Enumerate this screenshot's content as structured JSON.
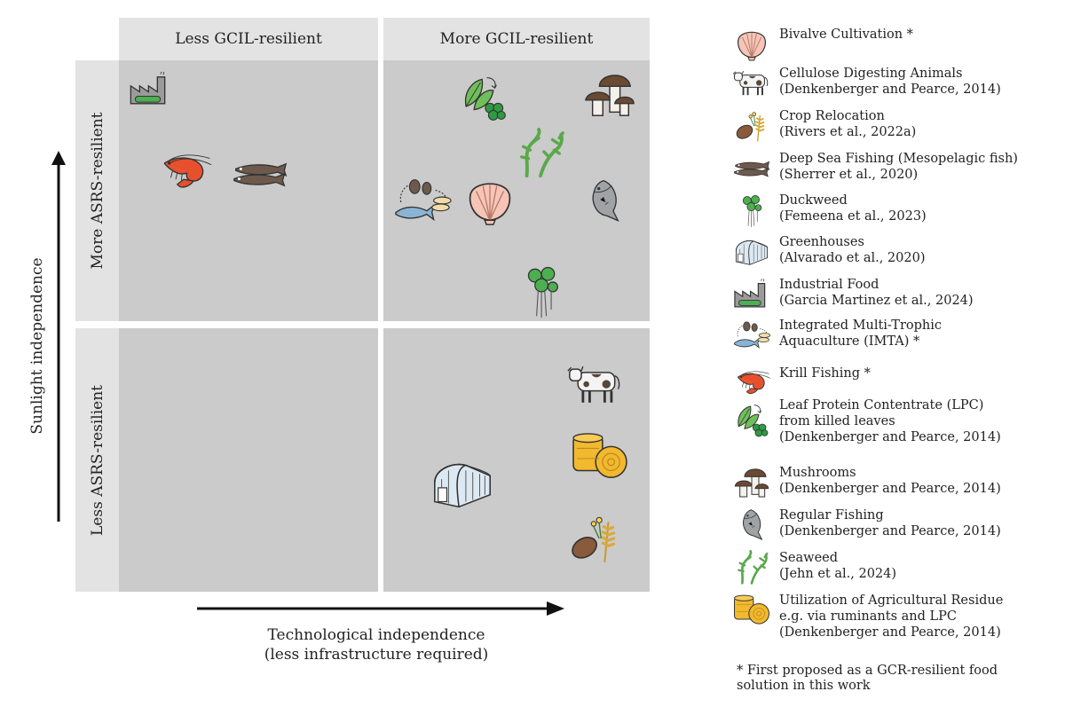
{
  "diagram": {
    "columns": [
      "Less GCIL-resilient",
      "More GCIL-resilient"
    ],
    "rows": [
      "More ASRS-resilient",
      "Less ASRS-resilient"
    ],
    "y_axis_label": "Sunlight independence",
    "x_axis_label_line1": "Technological independence",
    "x_axis_label_line2": "(less infrastructure required)",
    "colors": {
      "header": "#e3e3e3",
      "quadrant": "#cbcbcb",
      "green": "#4caf50",
      "shrimp": "#e8502d",
      "hay": "#f2b82e"
    }
  },
  "legend": [
    {
      "icon": "shell-icon",
      "line1": "Bivalve Cultivation *",
      "line2": ""
    },
    {
      "icon": "cow-icon",
      "line1": "Cellulose Digesting Animals",
      "line2": "(Denkenberger and Pearce, 2014)"
    },
    {
      "icon": "crop-icon",
      "line1": "Crop Relocation",
      "line2": "(Rivers et al., 2022a)"
    },
    {
      "icon": "deep-fish-icon",
      "line1": "Deep Sea Fishing (Mesopelagic fish)",
      "line2": "(Sherrer et al., 2020)"
    },
    {
      "icon": "duckweed-icon",
      "line1": "Duckweed",
      "line2": "(Femeena et al., 2023)"
    },
    {
      "icon": "greenhouse-icon",
      "line1": "Greenhouses",
      "line2": "(Alvarado et al., 2020)"
    },
    {
      "icon": "factory-icon",
      "line1": "Industrial Food",
      "line2": "(Garcia Martinez et al., 2024)"
    },
    {
      "icon": "imta-icon",
      "line1": "Integrated Multi-Trophic",
      "line2": "Aquaculture (IMTA) *"
    },
    {
      "icon": "shrimp-icon",
      "line1": "Krill Fishing *",
      "line2": ""
    },
    {
      "icon": "leaf-icon",
      "line1": "Leaf Protein Contentrate (LPC)",
      "line2": "from killed leaves",
      "line3": "(Denkenberger and Pearce, 2014)"
    },
    {
      "icon": "mushroom-icon",
      "line1": "Mushrooms",
      "line2": "(Denkenberger and Pearce, 2014)"
    },
    {
      "icon": "fish-icon",
      "line1": "Regular Fishing",
      "line2": "(Denkenberger and Pearce, 2014)"
    },
    {
      "icon": "seaweed-icon",
      "line1": "Seaweed",
      "line2": "(Jehn et al.,  2024)"
    },
    {
      "icon": "hay-icon",
      "line1": "Utilization of Agricultural Residue",
      "line2": "e.g. via ruminants and LPC",
      "line3": "(Denkenberger and Pearce, 2014)"
    }
  ],
  "footnote_line1": "* First proposed as a GCR-resilient food",
  "footnote_line2": "solution in this work"
}
